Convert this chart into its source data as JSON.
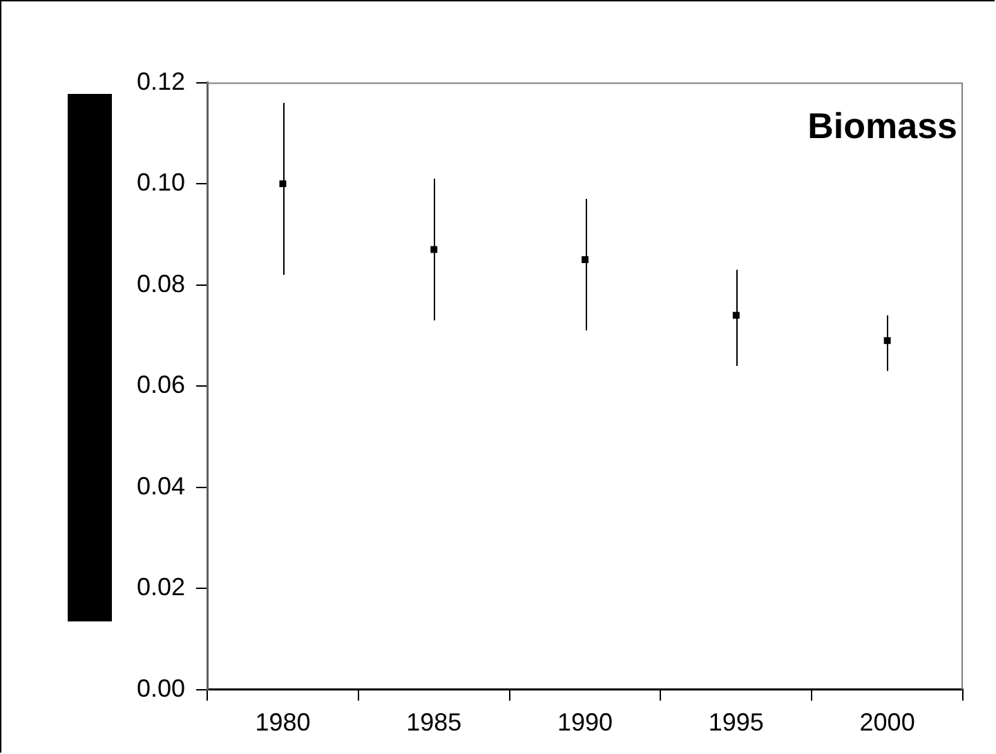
{
  "chart_data": {
    "type": "scatter",
    "title": "Biomass",
    "categories": [
      "1980",
      "1985",
      "1990",
      "1995",
      "2000"
    ],
    "values": [
      0.1,
      0.087,
      0.085,
      0.074,
      0.069
    ],
    "errors": [
      [
        0.082,
        0.116
      ],
      [
        0.073,
        0.101
      ],
      [
        0.071,
        0.097
      ],
      [
        0.064,
        0.083
      ],
      [
        0.063,
        0.074
      ]
    ],
    "color": "#000000",
    "marker": "square",
    "ylim": [
      0,
      0.12
    ],
    "yticks": [
      {
        "value": 0,
        "label": "0.00"
      },
      {
        "value": 0.02,
        "label": "0.02"
      },
      {
        "value": 0.04,
        "label": "0.04"
      },
      {
        "value": 0.06,
        "label": "0.06"
      },
      {
        "value": 0.08,
        "label": "0.08"
      },
      {
        "value": 0.1,
        "label": "0.10"
      },
      {
        "value": 0.12,
        "label": "0.12"
      }
    ],
    "grid": false,
    "legend": false
  }
}
